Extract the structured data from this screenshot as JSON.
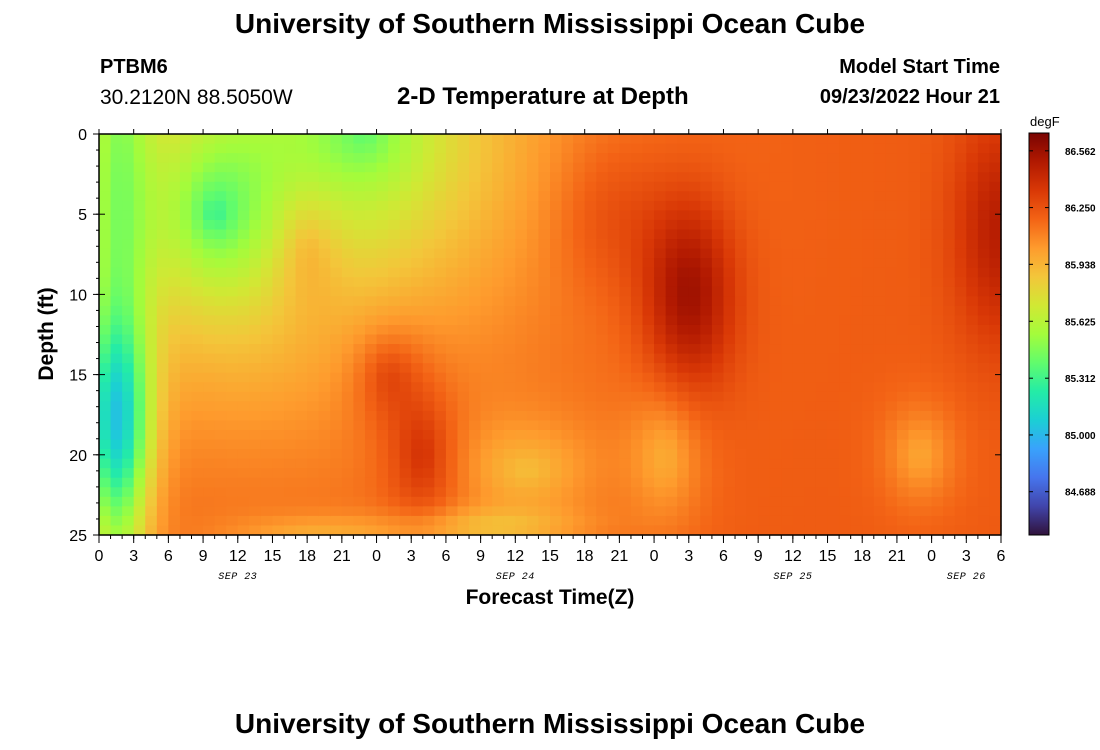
{
  "page": {
    "title": "University of Southern Mississippi Ocean Cube",
    "title_bottom": "University of Southern Mississippi Ocean Cube",
    "station_id": "PTBM6",
    "coordinates": "30.2120N  88.5050W",
    "subtitle": "2-D Temperature at Depth",
    "model_start_label": "Model Start Time",
    "model_start_value": "09/23/2022 Hour 21"
  },
  "chart_data": {
    "type": "heatmap",
    "title": "2-D Temperature at Depth",
    "xlabel": "Forecast Time(Z)",
    "ylabel": "Depth (ft)",
    "x_range_hours_from_sep23_00z": [
      0,
      78
    ],
    "y_range_ft": [
      0,
      25
    ],
    "y_inverted": true,
    "x_tick_labels": [
      "0",
      "3",
      "6",
      "9",
      "12",
      "15",
      "18",
      "21",
      "0",
      "3",
      "6",
      "9",
      "12",
      "15",
      "18",
      "21",
      "0",
      "3",
      "6",
      "9",
      "12",
      "15",
      "18",
      "21",
      "0",
      "3",
      "6"
    ],
    "x_tick_values_hours": [
      0,
      3,
      6,
      9,
      12,
      15,
      18,
      21,
      24,
      27,
      30,
      33,
      36,
      39,
      42,
      45,
      48,
      51,
      54,
      57,
      60,
      63,
      66,
      69,
      72,
      75,
      78
    ],
    "date_labels": [
      {
        "text": "SEP 23",
        "hour": 12
      },
      {
        "text": "SEP 24",
        "hour": 36
      },
      {
        "text": "SEP 25",
        "hour": 60
      },
      {
        "text": "SEP 26",
        "hour": 75
      }
    ],
    "y_tick_labels": [
      "0",
      "5",
      "10",
      "15",
      "20",
      "25"
    ],
    "y_tick_values": [
      0,
      5,
      10,
      15,
      20,
      25
    ],
    "colorbar": {
      "unit": "degF",
      "min": 84.45,
      "max": 86.66,
      "tick_labels": [
        "86.562",
        "86.250",
        "85.938",
        "85.625",
        "85.312",
        "85.000",
        "84.688"
      ],
      "tick_values": [
        86.562,
        86.25,
        85.938,
        85.625,
        85.312,
        85.0,
        84.688
      ],
      "colormap": [
        "#30123b",
        "#4145ab",
        "#4675ed",
        "#39a2fc",
        "#1bcfd4",
        "#24eca6",
        "#61fc6c",
        "#a4fc3b",
        "#d1e834",
        "#f3c63a",
        "#fe9b2d",
        "#f36315",
        "#d93806",
        "#b11901",
        "#7a0402"
      ]
    },
    "grid": false,
    "legend": "colorbar-right"
  }
}
